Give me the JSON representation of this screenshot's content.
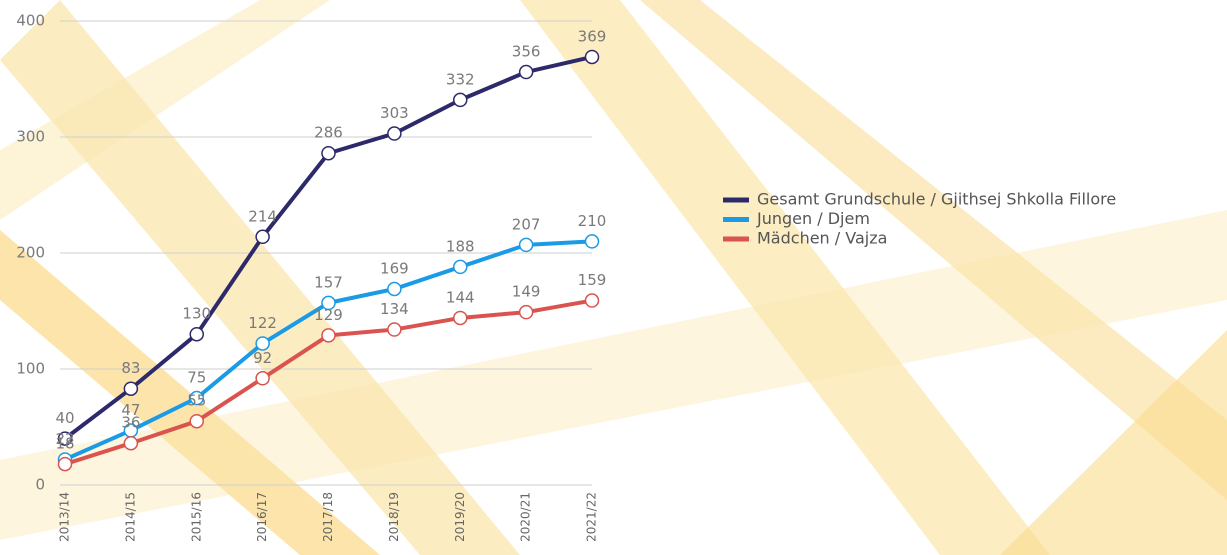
{
  "chart_data": {
    "type": "line",
    "categories": [
      "2013/14",
      "2014/15",
      "2015/16",
      "2016/17",
      "2017/18",
      "2018/19",
      "2019/20",
      "2020/21",
      "2021/22"
    ],
    "series": [
      {
        "name": "Gesamt Grundschule / Gjithsej Shkolla Fillore",
        "color": "#2d2a6b",
        "values": [
          40,
          83,
          130,
          214,
          286,
          303,
          332,
          356,
          369
        ]
      },
      {
        "name": "Jungen / Djem",
        "color": "#1b9ae6",
        "values": [
          22,
          47,
          75,
          122,
          157,
          169,
          188,
          207,
          210
        ]
      },
      {
        "name": "Mädchen / Vajza",
        "color": "#d9534f",
        "values": [
          18,
          36,
          55,
          92,
          129,
          134,
          144,
          149,
          159
        ]
      }
    ],
    "ylim": [
      0,
      400
    ],
    "yticks": [
      0,
      100,
      200,
      300,
      400
    ],
    "grid": true
  }
}
